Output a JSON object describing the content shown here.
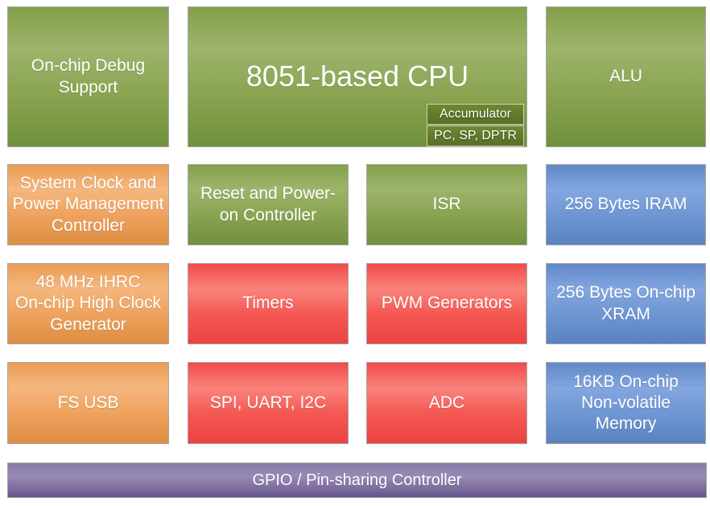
{
  "diagram": {
    "palette": {
      "green": "#8CA553",
      "orange": "#EDA35D",
      "red": "#F4615C",
      "blue": "#6F96D1",
      "purple": "#8573A4",
      "block_border": "#A6A6A6",
      "text": "#FFFFFF"
    },
    "cpu_block": {
      "label": "8051-based CPU",
      "accumulator_label": "Accumulator",
      "registers_label": "PC, SP, DPTR"
    },
    "blocks": {
      "debug": {
        "label": "On-chip Debug\nSupport"
      },
      "alu": {
        "label": "ALU"
      },
      "sysclock": {
        "label": "System Clock and\nPower Management\nController"
      },
      "reset": {
        "label": "Reset and Power-\non Controller"
      },
      "isr": {
        "label": "ISR"
      },
      "iram": {
        "label": "256 Bytes IRAM"
      },
      "ihrc": {
        "label": "48 MHz IHRC\nOn-chip High Clock\nGenerator"
      },
      "timers": {
        "label": "Timers"
      },
      "pwm": {
        "label": "PWM Generators"
      },
      "xram": {
        "label": "256 Bytes On-chip\nXRAM"
      },
      "usb": {
        "label": "FS USB"
      },
      "spi": {
        "label": "SPI, UART, I2C"
      },
      "adc": {
        "label": "ADC"
      },
      "nvm": {
        "label": "16KB On-chip\nNon-volatile\nMemory"
      }
    },
    "bottom_bar": {
      "label": "GPIO / Pin-sharing Controller"
    }
  }
}
